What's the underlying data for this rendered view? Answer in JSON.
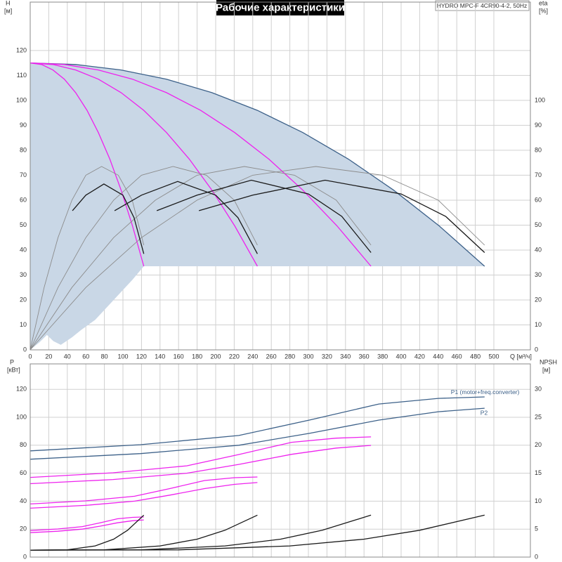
{
  "chart_data": [
    {
      "type": "line",
      "title": "Рабочие характеристики",
      "annotations": [
        "HYDRO MPC-F 4CR90-4-2, 50Hz"
      ],
      "ylabel": "H",
      "yunit": "[м]",
      "y2label": "eta",
      "y2unit": "[%]",
      "xlabel": "Q [м³/ч]",
      "xlim": [
        0,
        539.4
      ],
      "ylim": [
        0,
        139.4
      ],
      "y2lim": [
        0,
        139.4
      ],
      "xticks": [
        0,
        20,
        40,
        60,
        80,
        100,
        120,
        140,
        160,
        180,
        200,
        220,
        240,
        260,
        280,
        300,
        320,
        340,
        360,
        380,
        400,
        420,
        440,
        460,
        480,
        500
      ],
      "yticks": [
        0,
        10,
        20,
        30,
        40,
        50,
        60,
        70,
        80,
        90,
        100,
        110,
        120
      ],
      "y2ticks": [
        0,
        10,
        20,
        30,
        40,
        50,
        60,
        70,
        80,
        90,
        100
      ],
      "grid": true,
      "series": [
        {
          "type": "area",
          "color": "#c9d7e6",
          "x": [
            0,
            49,
            98,
            147,
            196,
            245,
            294,
            343,
            392,
            441,
            490,
            122.5,
            110,
            100,
            85,
            70,
            55,
            45,
            33,
            25,
            18,
            10,
            0
          ],
          "values": [
            115,
            114.4,
            112.2,
            108.5,
            103.1,
            96,
            87.1,
            76.5,
            64,
            49.7,
            33.5,
            33.5,
            28,
            24,
            18,
            12,
            8,
            5,
            2,
            3.5,
            6,
            3,
            0
          ]
        },
        {
          "color": "#3d6189",
          "x": [
            0,
            49,
            98,
            147,
            196,
            245,
            294,
            343,
            392,
            441,
            490
          ],
          "values": [
            115,
            114.4,
            112.2,
            108.5,
            103.1,
            96,
            87.1,
            76.5,
            64,
            49.7,
            33.5
          ]
        },
        {
          "color": "#ee22ee",
          "x": [
            0,
            36.8,
            73.5,
            110.3,
            147,
            183.8,
            220.5,
            257.3,
            294,
            330.8,
            367.5
          ],
          "values": [
            115,
            114.4,
            112.2,
            108.5,
            103.1,
            96,
            87.1,
            76.5,
            64,
            49.7,
            33.5
          ]
        },
        {
          "color": "#ee22ee",
          "x": [
            0,
            24.5,
            49,
            73.5,
            98,
            122.5,
            147,
            171.5,
            196,
            220.5,
            245
          ],
          "values": [
            115,
            114.4,
            112.2,
            108.5,
            103.1,
            96,
            87.1,
            76.5,
            64,
            49.7,
            33.5
          ]
        },
        {
          "color": "#ee22ee",
          "x": [
            0,
            12.3,
            24.5,
            36.8,
            49,
            61.3,
            73.5,
            85.8,
            98,
            110.3,
            122.5
          ],
          "values": [
            115,
            114.4,
            112.2,
            108.5,
            103.1,
            96,
            87.1,
            76.5,
            64,
            49.7,
            33.5
          ]
        },
        {
          "color": "#8c8c8c",
          "axis": "y2",
          "x": [
            0,
            15,
            30,
            45,
            60,
            77,
            95,
            110,
            122.5
          ],
          "values": [
            0,
            25,
            45,
            60,
            70,
            73.5,
            70,
            60,
            42
          ]
        },
        {
          "color": "#8c8c8c",
          "axis": "y2",
          "x": [
            0,
            30,
            60,
            90,
            120,
            154,
            190,
            220,
            245
          ],
          "values": [
            0,
            25,
            45,
            60,
            70,
            73.5,
            70,
            60,
            42
          ]
        },
        {
          "color": "#8c8c8c",
          "axis": "y2",
          "x": [
            0,
            45,
            90,
            135,
            180,
            231,
            285,
            330,
            367.5
          ],
          "values": [
            0,
            25,
            45,
            60,
            70,
            73.5,
            70,
            60,
            42
          ]
        },
        {
          "color": "#8c8c8c",
          "axis": "y2",
          "x": [
            0,
            60,
            120,
            180,
            240,
            308,
            380,
            440,
            490
          ],
          "values": [
            0,
            25,
            45,
            60,
            70,
            73.5,
            70,
            60,
            42
          ]
        },
        {
          "color": "#1a1a1a",
          "axis": "y2",
          "x": [
            45.5,
            60,
            79.5,
            100,
            112,
            122.5
          ],
          "values": [
            55.8,
            62,
            66.5,
            62,
            53,
            38.5
          ]
        },
        {
          "color": "#1a1a1a",
          "axis": "y2",
          "x": [
            91,
            120,
            159,
            200,
            224,
            245
          ],
          "values": [
            55.8,
            62,
            67.5,
            62,
            53,
            38.5
          ]
        },
        {
          "color": "#1a1a1a",
          "axis": "y2",
          "x": [
            136.5,
            180,
            238.5,
            300,
            336,
            367.5
          ],
          "values": [
            55.8,
            62,
            68,
            62.5,
            53.5,
            39
          ]
        },
        {
          "color": "#1a1a1a",
          "axis": "y2",
          "x": [
            182,
            240,
            318,
            400,
            448,
            490
          ],
          "values": [
            55.8,
            62,
            68,
            62.5,
            53.5,
            39
          ]
        }
      ]
    },
    {
      "type": "line",
      "ylabel": "P",
      "yunit": "[кВт]",
      "y2label": "NPSH",
      "y2unit": "[м]",
      "xlim": [
        0,
        539.4
      ],
      "ylim": [
        0,
        138.2
      ],
      "y2lim": [
        0,
        34.55
      ],
      "yticks": [
        0,
        20,
        40,
        60,
        80,
        100,
        120
      ],
      "y2ticks": [
        0,
        5,
        10,
        15,
        20,
        25,
        30
      ],
      "grid": true,
      "series": [
        {
          "name": "P1 (motor+freq.converter)",
          "color": "#3d6189",
          "x": [
            0,
            119,
            225,
            301,
            376,
            440,
            490
          ],
          "values": [
            76,
            80.4,
            87,
            98,
            109.5,
            113.5,
            114.6
          ]
        },
        {
          "name": "P2",
          "color": "#3d6189",
          "x": [
            0,
            119,
            225,
            301,
            376,
            440,
            490
          ],
          "values": [
            70,
            74,
            80,
            88.5,
            98,
            104,
            106.5
          ]
        },
        {
          "color": "#ee22ee",
          "x": [
            0,
            89.3,
            168.8,
            225.8,
            282,
            330,
            367.5
          ],
          "values": [
            57,
            60.3,
            65.3,
            73.5,
            82.1,
            85.1,
            86
          ]
        },
        {
          "color": "#ee22ee",
          "x": [
            0,
            89.3,
            168.8,
            225.8,
            282,
            330,
            367.5
          ],
          "values": [
            52.5,
            55.5,
            60,
            66.4,
            73.5,
            78,
            79.9
          ]
        },
        {
          "color": "#ee22ee",
          "x": [
            0,
            59.5,
            112.5,
            150.5,
            188,
            220,
            245
          ],
          "values": [
            38,
            40.2,
            43.5,
            49,
            54.8,
            56.8,
            57.3
          ]
        },
        {
          "color": "#ee22ee",
          "x": [
            0,
            59.5,
            112.5,
            150.5,
            188,
            220,
            245
          ],
          "values": [
            35,
            37,
            40,
            44.3,
            49,
            52,
            53.3
          ]
        },
        {
          "color": "#ee22ee",
          "x": [
            0,
            29.8,
            56.3,
            75.3,
            94,
            110,
            122.5
          ],
          "values": [
            19,
            20.1,
            21.8,
            24.5,
            27.4,
            28.4,
            28.7
          ]
        },
        {
          "color": "#ee22ee",
          "x": [
            0,
            29.8,
            56.3,
            75.3,
            94,
            110,
            122.5
          ],
          "values": [
            17.5,
            18.5,
            20,
            22.1,
            24.5,
            26,
            26.6
          ]
        },
        {
          "color": "#1a1a1a",
          "axis": "y2",
          "x": [
            0,
            40,
            70,
            90,
            105,
            122.5
          ],
          "values": [
            1.25,
            1.3,
            2,
            3.2,
            4.8,
            7.5
          ]
        },
        {
          "color": "#1a1a1a",
          "axis": "y2",
          "x": [
            0,
            80,
            140,
            180,
            210,
            245
          ],
          "values": [
            1.25,
            1.3,
            2,
            3.2,
            4.8,
            7.5
          ]
        },
        {
          "color": "#1a1a1a",
          "axis": "y2",
          "x": [
            0,
            120,
            210,
            270,
            315,
            367.5
          ],
          "values": [
            1.25,
            1.3,
            2,
            3.2,
            4.8,
            7.5
          ]
        },
        {
          "color": "#1a1a1a",
          "axis": "y2",
          "x": [
            0,
            160,
            280,
            360,
            420,
            490
          ],
          "values": [
            1.25,
            1.3,
            2,
            3.2,
            4.8,
            7.5
          ]
        }
      ]
    }
  ]
}
